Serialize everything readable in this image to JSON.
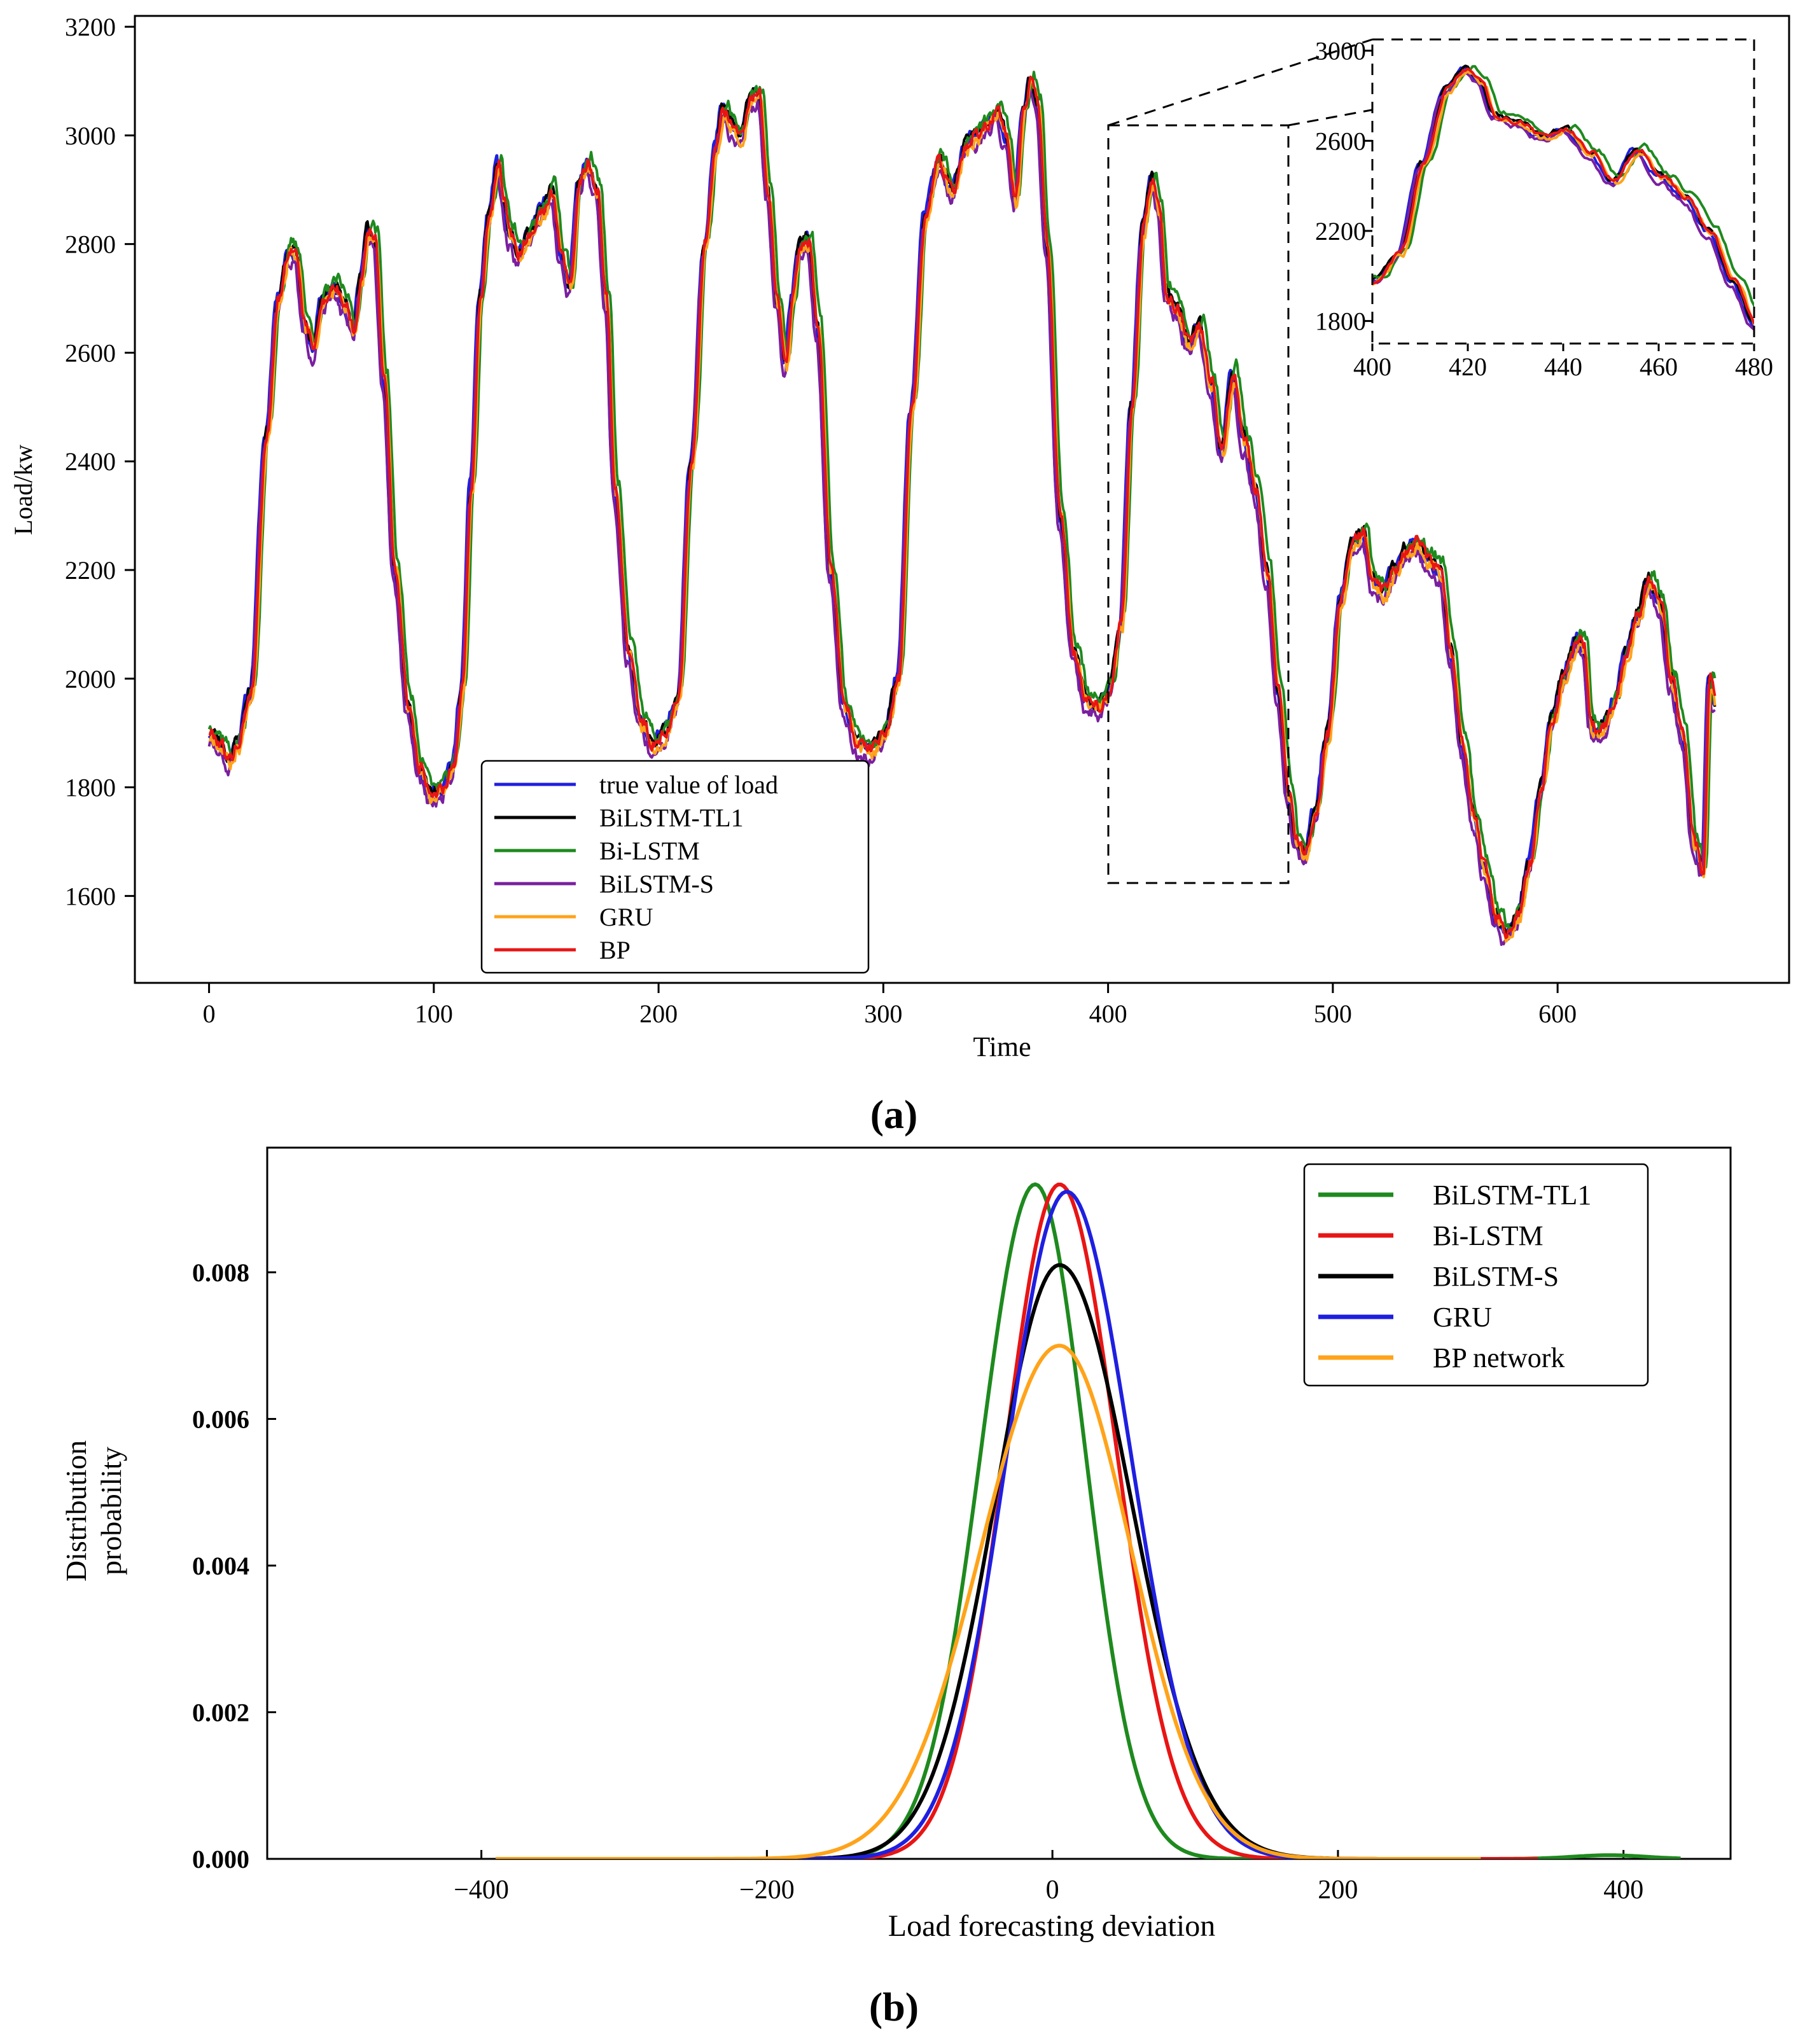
{
  "chart_data": [
    {
      "id": "a",
      "type": "line",
      "caption": "(a)",
      "xlabel": "Time",
      "ylabel": "Load/kw",
      "xlim": [
        -33,
        703
      ],
      "ylim": [
        1440,
        3220
      ],
      "xticks": [
        0,
        100,
        200,
        300,
        400,
        500,
        600
      ],
      "yticks": [
        1600,
        1800,
        2000,
        2200,
        2400,
        2600,
        2800,
        3000,
        3200
      ],
      "legend_position": "bottom-center",
      "noise_amplitude": 22,
      "series": [
        {
          "name": "true value of load",
          "color": "#1f1fe0",
          "shift": 0,
          "offset": 0,
          "noise_seed": 11
        },
        {
          "name": "BiLSTM-TL1",
          "color": "#000000",
          "shift": 0.5,
          "offset": 5,
          "noise_seed": 23
        },
        {
          "name": "Bi-LSTM",
          "color": "#1e8a1e",
          "shift": 2,
          "offset": 12,
          "noise_seed": 37
        },
        {
          "name": "BiLSTM-S",
          "color": "#7a1fa0",
          "shift": 0,
          "offset": -20,
          "noise_seed": 51
        },
        {
          "name": "GRU",
          "color": "#ffa31a",
          "shift": 1.2,
          "offset": -8,
          "noise_seed": 67
        },
        {
          "name": "BP",
          "color": "#e81515",
          "shift": 0.8,
          "offset": 0,
          "noise_seed": 79
        }
      ],
      "base_curve": {
        "x": [
          0,
          5,
          8,
          12,
          18,
          25,
          30,
          35,
          38,
          42,
          46,
          50,
          55,
          60,
          64,
          67,
          70,
          73,
          77,
          82,
          88,
          93,
          98,
          103,
          108,
          112,
          116,
          120,
          124,
          128,
          130,
          133,
          137,
          142,
          147,
          152,
          156,
          160,
          164,
          168,
          172,
          176,
          180,
          186,
          192,
          197,
          202,
          208,
          214,
          220,
          225,
          228,
          232,
          236,
          240,
          244,
          248,
          252,
          256,
          259,
          262,
          266,
          270,
          276,
          282,
          288,
          294,
          300,
          306,
          312,
          318,
          324,
          330,
          336,
          340,
          346,
          350,
          354,
          358,
          362,
          365,
          368,
          372,
          378,
          384,
          390,
          395,
          400,
          405,
          410,
          415,
          419,
          422,
          425,
          430,
          435,
          440,
          445,
          450,
          455,
          460,
          465,
          470,
          475,
          480,
          483,
          487,
          492,
          497,
          503,
          508,
          513,
          517,
          522,
          527,
          532,
          537,
          542,
          547,
          552,
          557,
          562,
          567,
          572,
          577,
          582,
          587,
          592,
          597,
          602,
          605,
          608,
          611,
          614,
          617,
          621,
          625,
          630,
          635,
          640,
          645,
          650,
          655,
          660,
          664,
          667,
          670
        ],
        "y": [
          1900,
          1880,
          1850,
          1880,
          1980,
          2450,
          2700,
          2790,
          2780,
          2650,
          2610,
          2700,
          2720,
          2690,
          2640,
          2740,
          2830,
          2810,
          2560,
          2200,
          1950,
          1840,
          1790,
          1800,
          1840,
          1980,
          2350,
          2700,
          2850,
          2950,
          2890,
          2820,
          2780,
          2820,
          2860,
          2900,
          2780,
          2720,
          2920,
          2950,
          2900,
          2700,
          2350,
          2050,
          1920,
          1880,
          1900,
          1960,
          2400,
          2800,
          2980,
          3050,
          3020,
          3000,
          3060,
          3080,
          2900,
          2700,
          2580,
          2700,
          2800,
          2810,
          2650,
          2200,
          1950,
          1880,
          1870,
          1900,
          2000,
          2500,
          2850,
          2950,
          2900,
          2980,
          3000,
          3020,
          3040,
          3000,
          2880,
          3050,
          3100,
          3060,
          2800,
          2300,
          2050,
          1960,
          1950,
          1980,
          2100,
          2500,
          2830,
          2920,
          2870,
          2710,
          2680,
          2620,
          2650,
          2550,
          2420,
          2560,
          2440,
          2350,
          2200,
          1980,
          1780,
          1700,
          1680,
          1760,
          1900,
          2150,
          2250,
          2270,
          2180,
          2160,
          2200,
          2240,
          2250,
          2220,
          2200,
          2050,
          1880,
          1750,
          1650,
          1560,
          1530,
          1570,
          1660,
          1800,
          1930,
          2000,
          2040,
          2080,
          2060,
          1920,
          1900,
          1920,
          1960,
          2050,
          2120,
          2180,
          2140,
          2000,
          1900,
          1700,
          1650,
          2000,
          1950
        ]
      },
      "inset": {
        "xlim": [
          400,
          480
        ],
        "ylim": [
          1700,
          3050
        ],
        "xticks": [
          400,
          420,
          440,
          460,
          480
        ],
        "yticks": [
          1800,
          2200,
          2600,
          3000
        ]
      }
    },
    {
      "id": "b",
      "type": "line",
      "caption": "(b)",
      "xlabel": "Load forecasting deviation",
      "ylabel_lines": [
        "Distribution",
        "probability"
      ],
      "xlim": [
        -550,
        475
      ],
      "ylim": [
        0,
        0.0097
      ],
      "xticks": [
        -400,
        -200,
        0,
        200,
        400
      ],
      "yticks": [
        0.0,
        0.002,
        0.004,
        0.006,
        0.008
      ],
      "ytick_labels": [
        "0.000",
        "0.002",
        "0.004",
        "0.006",
        "0.008"
      ],
      "legend_position": "top-right",
      "series": [
        {
          "name": "BiLSTM-TL1",
          "color": "#1e8a1e",
          "peak": 0.0092,
          "mean": -12,
          "sd_left": 38,
          "sd_right": 35,
          "x_range": [
            -380,
            440
          ],
          "tail_bump": [
            390,
            5e-05
          ]
        },
        {
          "name": "Bi-LSTM",
          "color": "#e81515",
          "peak": 0.0092,
          "mean": 5,
          "sd_left": 38,
          "sd_right": 40,
          "x_range": [
            -350,
            340
          ],
          "tail_bump": null
        },
        {
          "name": "BiLSTM-S",
          "color": "#000000",
          "peak": 0.0081,
          "mean": 5,
          "sd_left": 45,
          "sd_right": 50,
          "x_range": [
            -380,
            260
          ],
          "tail_bump": null
        },
        {
          "name": "GRU",
          "color": "#1f1fe0",
          "peak": 0.0091,
          "mean": 10,
          "sd_left": 42,
          "sd_right": 45,
          "x_range": [
            -325,
            290
          ],
          "tail_bump": null
        },
        {
          "name": "BP network",
          "color": "#ffa31a",
          "peak": 0.007,
          "mean": 5,
          "sd_left": 55,
          "sd_right": 50,
          "x_range": [
            -390,
            300
          ],
          "tail_bump": null
        }
      ]
    }
  ]
}
